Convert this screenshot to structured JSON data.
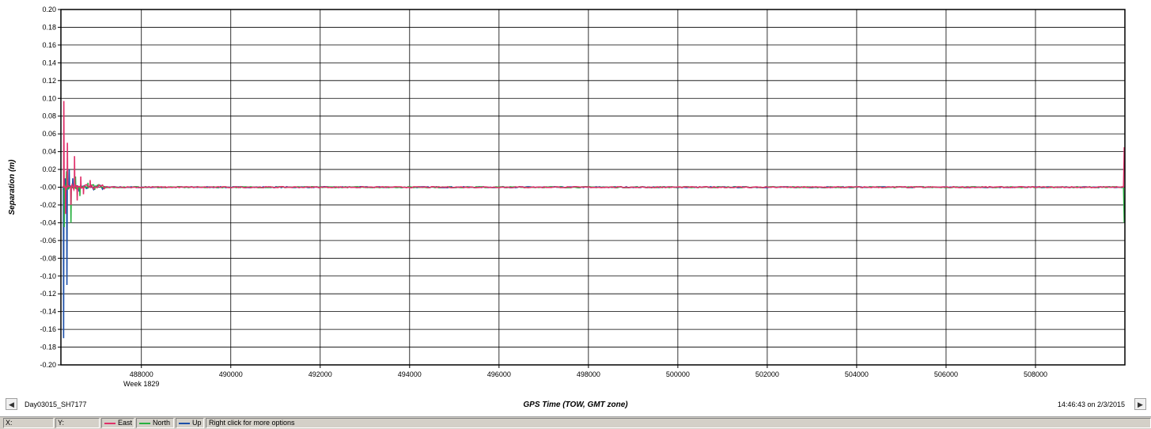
{
  "chart_data": {
    "type": "line",
    "title": "",
    "ylabel": "Separation (m)",
    "xlabel": "GPS Time (TOW, GMT zone)",
    "ylim": [
      -0.2,
      0.2
    ],
    "xlim": [
      486200,
      510000
    ],
    "yticks": [
      "0.20",
      "0.18",
      "0.16",
      "0.14",
      "0.12",
      "0.10",
      "0.08",
      "0.06",
      "0.04",
      "0.02",
      "-0.00",
      "-0.02",
      "-0.04",
      "-0.06",
      "-0.08",
      "-0.10",
      "-0.12",
      "-0.14",
      "-0.16",
      "-0.18",
      "-0.20"
    ],
    "xticks": [
      "488000",
      "490000",
      "492000",
      "494000",
      "496000",
      "498000",
      "500000",
      "502000",
      "504000",
      "506000",
      "508000"
    ],
    "xtick_sublabel": "Week 1829",
    "grid": true,
    "series": [
      {
        "name": "East",
        "color": "#e0306a"
      },
      {
        "name": "North",
        "color": "#28b040"
      },
      {
        "name": "Up",
        "color": "#1c4fa8"
      }
    ]
  },
  "nav": {
    "left_icon": "arrow-left-icon",
    "right_icon": "arrow-right-icon",
    "dataset": "Day03015_SH7177",
    "timestamp": "14:46:43 on 2/3/2015"
  },
  "status": {
    "x_label": "X:",
    "y_label": "Y:",
    "legend": [
      {
        "name": "East",
        "color": "#e0306a"
      },
      {
        "name": "North",
        "color": "#28b040"
      },
      {
        "name": "Up",
        "color": "#1c4fa8"
      }
    ],
    "message": "Right click for more options"
  }
}
